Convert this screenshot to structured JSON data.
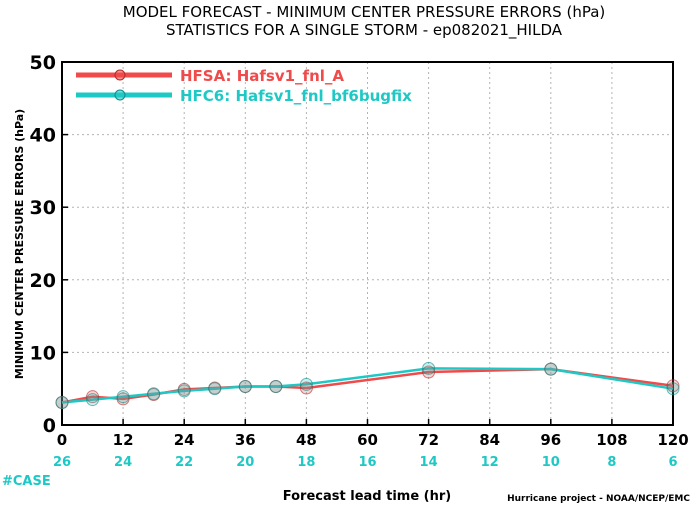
{
  "chart_data": {
    "type": "line",
    "title_lines": [
      "MODEL FORECAST - MINIMUM CENTER PRESSURE ERRORS (hPa)",
      "STATISTICS FOR A SINGLE STORM - ep082021_HILDA"
    ],
    "xlabel": "Forecast lead time (hr)",
    "ylabel": "MINIMUM CENTER PRESSURE ERRORS (hPa)",
    "xlim": [
      0,
      120
    ],
    "ylim": [
      0,
      50
    ],
    "x_ticks": [
      0,
      12,
      24,
      36,
      48,
      60,
      72,
      84,
      96,
      108,
      120
    ],
    "y_ticks": [
      0,
      10,
      20,
      30,
      40,
      50
    ],
    "grid": true,
    "legend_placement": "top-left",
    "series": [
      {
        "name": "HFSA: Hafsv1_fnl_A",
        "color": "#f04a4a",
        "x": [
          0,
          6,
          12,
          18,
          24,
          30,
          36,
          42,
          48,
          72,
          96,
          120
        ],
        "y": [
          3.1,
          3.9,
          3.6,
          4.2,
          4.9,
          5.1,
          5.3,
          5.3,
          5.1,
          7.3,
          7.7,
          5.4
        ]
      },
      {
        "name": "HFC6: Hafsv1_fnl_bf6bugfix",
        "color": "#1ec8c4",
        "x": [
          0,
          6,
          12,
          18,
          24,
          30,
          36,
          42,
          48,
          72,
          96,
          120
        ],
        "y": [
          3.1,
          3.5,
          3.9,
          4.3,
          4.7,
          5.0,
          5.3,
          5.3,
          5.6,
          7.8,
          7.7,
          5.0
        ]
      }
    ],
    "case_label": "#CASE",
    "case_counts": [
      "26",
      "24",
      "22",
      "20",
      "18",
      "16",
      "14",
      "12",
      "10",
      "8",
      "6"
    ],
    "case_color": "#1ec8c4",
    "footer": "Hurricane project - NOAA/NCEP/EMC"
  }
}
